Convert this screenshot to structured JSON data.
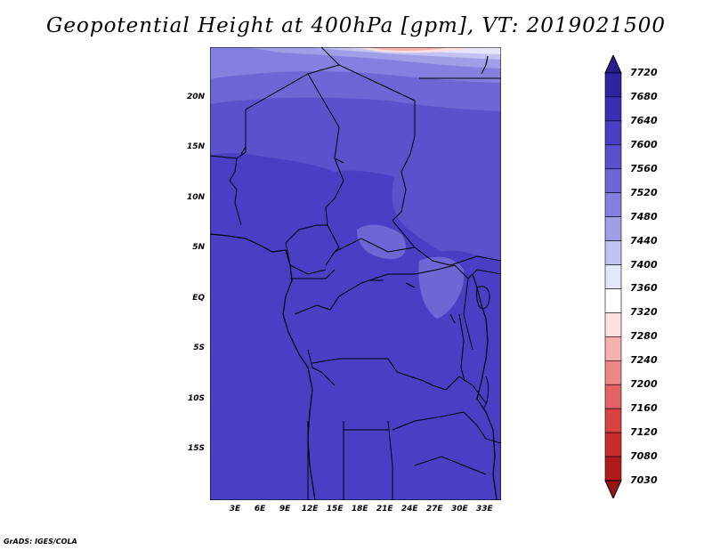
{
  "title": "Geopotential Height at 400hPa [gpm], VT: 2019021500",
  "credit": "GrADS: IGES/COLA",
  "map": {
    "lon_range": [
      0,
      35
    ],
    "lat_range": [
      -20,
      25
    ],
    "lat_ticks": [
      {
        "value": 20,
        "label": "20N"
      },
      {
        "value": 15,
        "label": "15N"
      },
      {
        "value": 10,
        "label": "10N"
      },
      {
        "value": 5,
        "label": "5N"
      },
      {
        "value": 0,
        "label": "EQ"
      },
      {
        "value": -5,
        "label": "5S"
      },
      {
        "value": -10,
        "label": "10S"
      },
      {
        "value": -15,
        "label": "15S"
      }
    ],
    "lon_ticks": [
      {
        "value": 3,
        "label": "3E"
      },
      {
        "value": 6,
        "label": "6E"
      },
      {
        "value": 9,
        "label": "9E"
      },
      {
        "value": 12,
        "label": "12E"
      },
      {
        "value": 15,
        "label": "15E"
      },
      {
        "value": 18,
        "label": "18E"
      },
      {
        "value": 21,
        "label": "21E"
      },
      {
        "value": 24,
        "label": "24E"
      },
      {
        "value": 27,
        "label": "27E"
      },
      {
        "value": 30,
        "label": "30E"
      },
      {
        "value": 33,
        "label": "33E"
      }
    ]
  },
  "colorbar": {
    "labels": [
      "7720",
      "7680",
      "7640",
      "7600",
      "7560",
      "7520",
      "7480",
      "7440",
      "7400",
      "7360",
      "7320",
      "7280",
      "7240",
      "7200",
      "7160",
      "7120",
      "7080",
      "7030"
    ],
    "colors": [
      "#2a1c8c",
      "#2f23a0",
      "#3a2fb4",
      "#4a3fc4",
      "#5b51cc",
      "#6f66d6",
      "#8580e0",
      "#a19ee8",
      "#c4c2f2",
      "#e6e6fa",
      "#ffffff",
      "#fde0e0",
      "#f5b0b0",
      "#ec8888",
      "#e46262",
      "#d94242",
      "#c92a2a",
      "#b01c1c",
      "#9a1414"
    ]
  }
}
